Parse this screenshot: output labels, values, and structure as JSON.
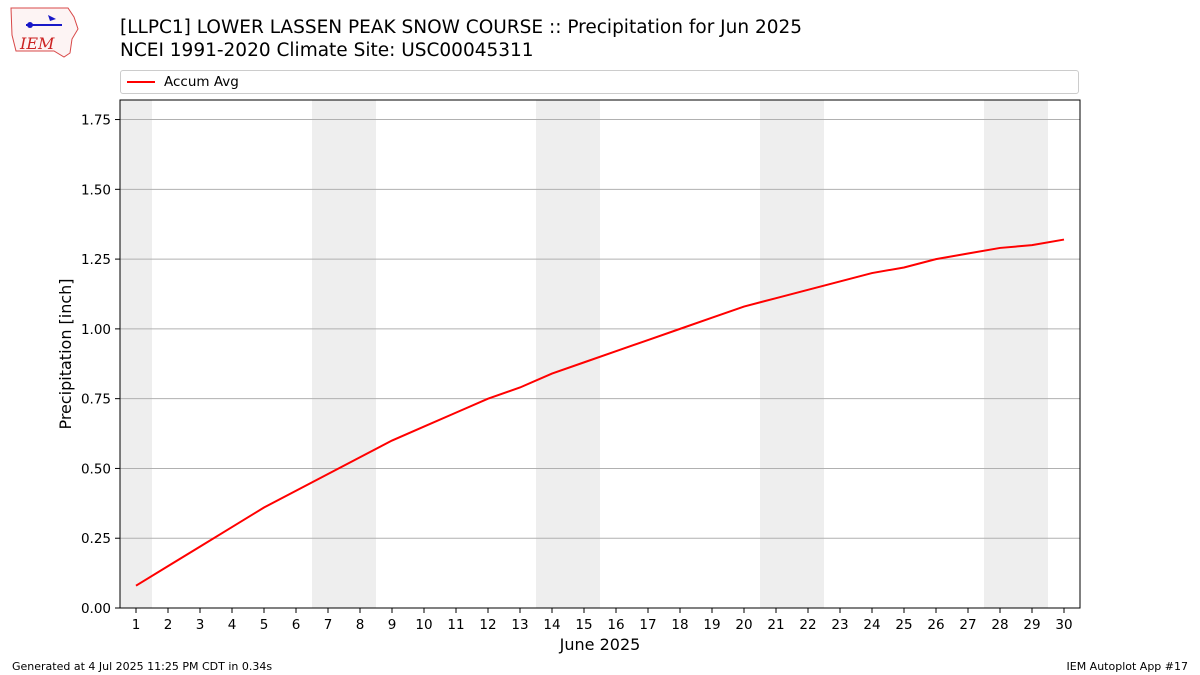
{
  "header": {
    "title": "[LLPC1] LOWER LASSEN PEAK SNOW COURSE :: Precipitation for Jun 2025",
    "subtitle": "NCEI 1991-2020 Climate Site: USC00045311"
  },
  "logo": {
    "text": "IEM",
    "icon": "iowa-state-weather-logo-icon"
  },
  "footer": {
    "left": "Generated at 4 Jul 2025 11:25 PM CDT in 0.34s",
    "right": "IEM Autoplot App #17"
  },
  "colors": {
    "series": "#ff0000",
    "weekend_shade": "#eeeeee",
    "grid": "#b0b0b0"
  },
  "chart_data": {
    "type": "line",
    "title": "[LLPC1] LOWER LASSEN PEAK SNOW COURSE :: Precipitation for Jun 2025",
    "subtitle": "NCEI 1991-2020 Climate Site: USC00045311",
    "xlabel": "June 2025",
    "ylabel": "Precipitation [inch]",
    "x": [
      1,
      2,
      3,
      4,
      5,
      6,
      7,
      8,
      9,
      10,
      11,
      12,
      13,
      14,
      15,
      16,
      17,
      18,
      19,
      20,
      21,
      22,
      23,
      24,
      25,
      26,
      27,
      28,
      29,
      30
    ],
    "xlim": [
      0.5,
      30.5
    ],
    "ylim": [
      0,
      1.82
    ],
    "yticks": [
      0.0,
      0.25,
      0.5,
      0.75,
      1.0,
      1.25,
      1.5,
      1.75
    ],
    "ytick_labels": [
      "0.00",
      "0.25",
      "0.50",
      "0.75",
      "1.00",
      "1.25",
      "1.50",
      "1.75"
    ],
    "grid": "horizontal",
    "legend_position": "top",
    "weekend_shading": [
      [
        1,
        1
      ],
      [
        7,
        8
      ],
      [
        14,
        15
      ],
      [
        21,
        22
      ],
      [
        28,
        29
      ]
    ],
    "series": [
      {
        "name": "Accum Avg",
        "color": "#ff0000",
        "values": [
          0.08,
          0.15,
          0.22,
          0.29,
          0.36,
          0.42,
          0.48,
          0.54,
          0.6,
          0.65,
          0.7,
          0.75,
          0.79,
          0.84,
          0.88,
          0.92,
          0.96,
          1.0,
          1.04,
          1.08,
          1.11,
          1.14,
          1.17,
          1.2,
          1.22,
          1.25,
          1.27,
          1.29,
          1.3,
          1.32
        ]
      }
    ]
  }
}
